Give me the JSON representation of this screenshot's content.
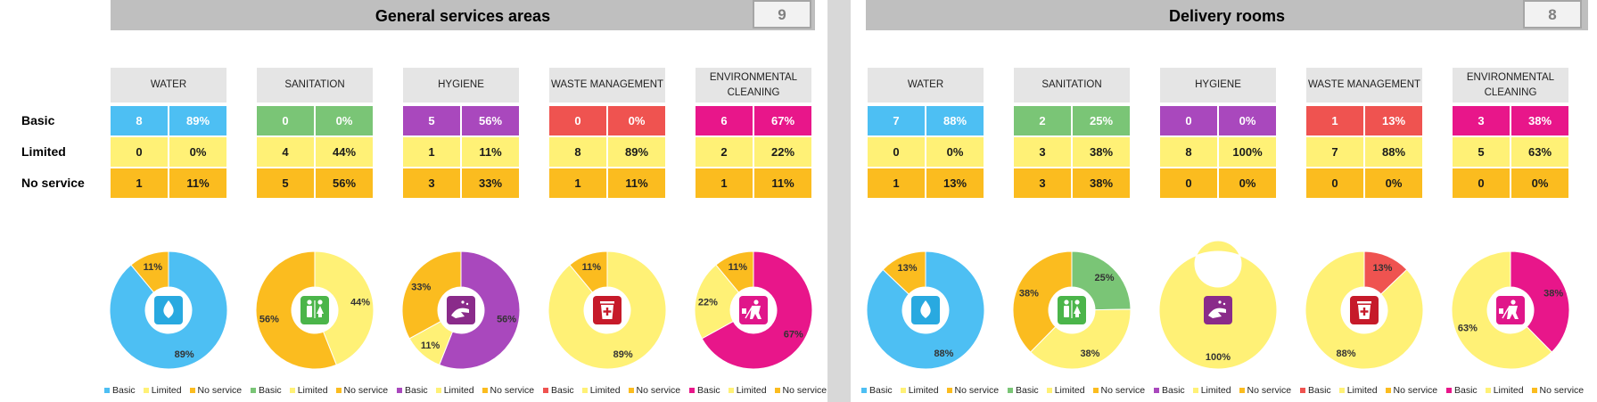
{
  "colors": {
    "water": "#4dbff3",
    "sanitation": "#7ac576",
    "hygiene": "#a948bd",
    "waste": "#ef5350",
    "cleaning": "#e8168a",
    "limited": "#fff176",
    "no_service": "#fbbc1f",
    "header_bg": "#e5e5e5",
    "icon_water": "#29a9e0",
    "icon_sanitation": "#4bb54a",
    "icon_hygiene": "#8a2b8a",
    "icon_waste": "#c61a2a",
    "icon_cleaning": "#e0168a"
  },
  "row_labels": [
    "Basic",
    "Limited",
    "No service"
  ],
  "legend_labels": [
    "Basic",
    "Limited",
    "No service"
  ],
  "panels": [
    {
      "title": "General services areas",
      "count": "9",
      "categories": [
        {
          "key": "water",
          "header": "WATER",
          "icon": "water-drop-icon",
          "counts": [
            "8",
            "0",
            "1"
          ],
          "percents": [
            "89%",
            "0%",
            "11%"
          ],
          "donut": [
            {
              "label": "89%",
              "value": 89,
              "series": "basic"
            },
            {
              "label": "",
              "value": 0,
              "series": "limited"
            },
            {
              "label": "11%",
              "value": 11,
              "series": "no_service"
            }
          ]
        },
        {
          "key": "sanitation",
          "header": "SANITATION",
          "icon": "toilet-people-icon",
          "counts": [
            "0",
            "4",
            "5"
          ],
          "percents": [
            "0%",
            "44%",
            "56%"
          ],
          "donut": [
            {
              "label": "",
              "value": 0,
              "series": "basic"
            },
            {
              "label": "44%",
              "value": 44,
              "series": "limited"
            },
            {
              "label": "56%",
              "value": 56,
              "series": "no_service"
            }
          ]
        },
        {
          "key": "hygiene",
          "header": "HYGIENE",
          "icon": "handwash-icon",
          "counts": [
            "5",
            "1",
            "3"
          ],
          "percents": [
            "56%",
            "11%",
            "33%"
          ],
          "donut": [
            {
              "label": "56%",
              "value": 56,
              "series": "basic"
            },
            {
              "label": "11%",
              "value": 11,
              "series": "limited"
            },
            {
              "label": "33%",
              "value": 33,
              "series": "no_service"
            }
          ]
        },
        {
          "key": "waste",
          "header": "WASTE MANAGEMENT",
          "icon": "waste-bin-icon",
          "counts": [
            "0",
            "8",
            "1"
          ],
          "percents": [
            "0%",
            "89%",
            "11%"
          ],
          "donut": [
            {
              "label": "",
              "value": 0,
              "series": "basic"
            },
            {
              "label": "89%",
              "value": 89,
              "series": "limited"
            },
            {
              "label": "11%",
              "value": 11,
              "series": "no_service"
            }
          ]
        },
        {
          "key": "cleaning",
          "header": "ENVIRONMENTAL CLEANING",
          "icon": "cleaning-person-icon",
          "counts": [
            "6",
            "2",
            "1"
          ],
          "percents": [
            "67%",
            "22%",
            "11%"
          ],
          "donut": [
            {
              "label": "67%",
              "value": 67,
              "series": "basic"
            },
            {
              "label": "22%",
              "value": 22,
              "series": "limited"
            },
            {
              "label": "11%",
              "value": 11,
              "series": "no_service"
            }
          ]
        }
      ]
    },
    {
      "title": "Delivery rooms",
      "count": "8",
      "categories": [
        {
          "key": "water",
          "header": "WATER",
          "icon": "water-drop-icon",
          "counts": [
            "7",
            "0",
            "1"
          ],
          "percents": [
            "88%",
            "0%",
            "13%"
          ],
          "donut": [
            {
              "label": "88%",
              "value": 88,
              "series": "basic"
            },
            {
              "label": "",
              "value": 0,
              "series": "limited"
            },
            {
              "label": "13%",
              "value": 13,
              "series": "no_service"
            }
          ]
        },
        {
          "key": "sanitation",
          "header": "SANITATION",
          "icon": "toilet-people-icon",
          "counts": [
            "2",
            "3",
            "3"
          ],
          "percents": [
            "25%",
            "38%",
            "38%"
          ],
          "donut": [
            {
              "label": "25%",
              "value": 25,
              "series": "basic"
            },
            {
              "label": "38%",
              "value": 38,
              "series": "limited"
            },
            {
              "label": "38%",
              "value": 38,
              "series": "no_service"
            }
          ]
        },
        {
          "key": "hygiene",
          "header": "HYGIENE",
          "icon": "handwash-icon",
          "counts": [
            "0",
            "8",
            "0"
          ],
          "percents": [
            "0%",
            "100%",
            "0%"
          ],
          "donut": [
            {
              "label": "",
              "value": 0,
              "series": "basic"
            },
            {
              "label": "100%",
              "value": 100,
              "series": "limited"
            },
            {
              "label": "",
              "value": 0,
              "series": "no_service"
            }
          ]
        },
        {
          "key": "waste",
          "header": "WASTE MANAGEMENT",
          "icon": "waste-bin-icon",
          "counts": [
            "1",
            "7",
            "0"
          ],
          "percents": [
            "13%",
            "88%",
            "0%"
          ],
          "donut": [
            {
              "label": "13%",
              "value": 13,
              "series": "basic"
            },
            {
              "label": "88%",
              "value": 88,
              "series": "limited"
            },
            {
              "label": "",
              "value": 0,
              "series": "no_service"
            }
          ]
        },
        {
          "key": "cleaning",
          "header": "ENVIRONMENTAL CLEANING",
          "icon": "cleaning-person-icon",
          "counts": [
            "3",
            "5",
            "0"
          ],
          "percents": [
            "38%",
            "63%",
            "0%"
          ],
          "donut": [
            {
              "label": "38%",
              "value": 38,
              "series": "basic"
            },
            {
              "label": "63%",
              "value": 63,
              "series": "limited"
            },
            {
              "label": "",
              "value": 0,
              "series": "no_service"
            }
          ]
        }
      ]
    }
  ],
  "chart_data": [
    {
      "type": "pie",
      "panel": "General services areas",
      "title": "WATER",
      "series": [
        {
          "name": "Basic",
          "value": 89
        },
        {
          "name": "Limited",
          "value": 0
        },
        {
          "name": "No service",
          "value": 11
        }
      ]
    },
    {
      "type": "pie",
      "panel": "General services areas",
      "title": "SANITATION",
      "series": [
        {
          "name": "Basic",
          "value": 0
        },
        {
          "name": "Limited",
          "value": 44
        },
        {
          "name": "No service",
          "value": 56
        }
      ]
    },
    {
      "type": "pie",
      "panel": "General services areas",
      "title": "HYGIENE",
      "series": [
        {
          "name": "Basic",
          "value": 56
        },
        {
          "name": "Limited",
          "value": 11
        },
        {
          "name": "No service",
          "value": 33
        }
      ]
    },
    {
      "type": "pie",
      "panel": "General services areas",
      "title": "WASTE MANAGEMENT",
      "series": [
        {
          "name": "Basic",
          "value": 0
        },
        {
          "name": "Limited",
          "value": 89
        },
        {
          "name": "No service",
          "value": 11
        }
      ]
    },
    {
      "type": "pie",
      "panel": "General services areas",
      "title": "ENVIRONMENTAL CLEANING",
      "series": [
        {
          "name": "Basic",
          "value": 67
        },
        {
          "name": "Limited",
          "value": 22
        },
        {
          "name": "No service",
          "value": 11
        }
      ]
    },
    {
      "type": "pie",
      "panel": "Delivery rooms",
      "title": "WATER",
      "series": [
        {
          "name": "Basic",
          "value": 88
        },
        {
          "name": "Limited",
          "value": 0
        },
        {
          "name": "No service",
          "value": 13
        }
      ]
    },
    {
      "type": "pie",
      "panel": "Delivery rooms",
      "title": "SANITATION",
      "series": [
        {
          "name": "Basic",
          "value": 25
        },
        {
          "name": "Limited",
          "value": 38
        },
        {
          "name": "No service",
          "value": 38
        }
      ]
    },
    {
      "type": "pie",
      "panel": "Delivery rooms",
      "title": "HYGIENE",
      "series": [
        {
          "name": "Basic",
          "value": 0
        },
        {
          "name": "Limited",
          "value": 100
        },
        {
          "name": "No service",
          "value": 0
        }
      ]
    },
    {
      "type": "pie",
      "panel": "Delivery rooms",
      "title": "WASTE MANAGEMENT",
      "series": [
        {
          "name": "Basic",
          "value": 13
        },
        {
          "name": "Limited",
          "value": 88
        },
        {
          "name": "No service",
          "value": 0
        }
      ]
    },
    {
      "type": "pie",
      "panel": "Delivery rooms",
      "title": "ENVIRONMENTAL CLEANING",
      "series": [
        {
          "name": "Basic",
          "value": 38
        },
        {
          "name": "Limited",
          "value": 63
        },
        {
          "name": "No service",
          "value": 0
        }
      ]
    }
  ]
}
